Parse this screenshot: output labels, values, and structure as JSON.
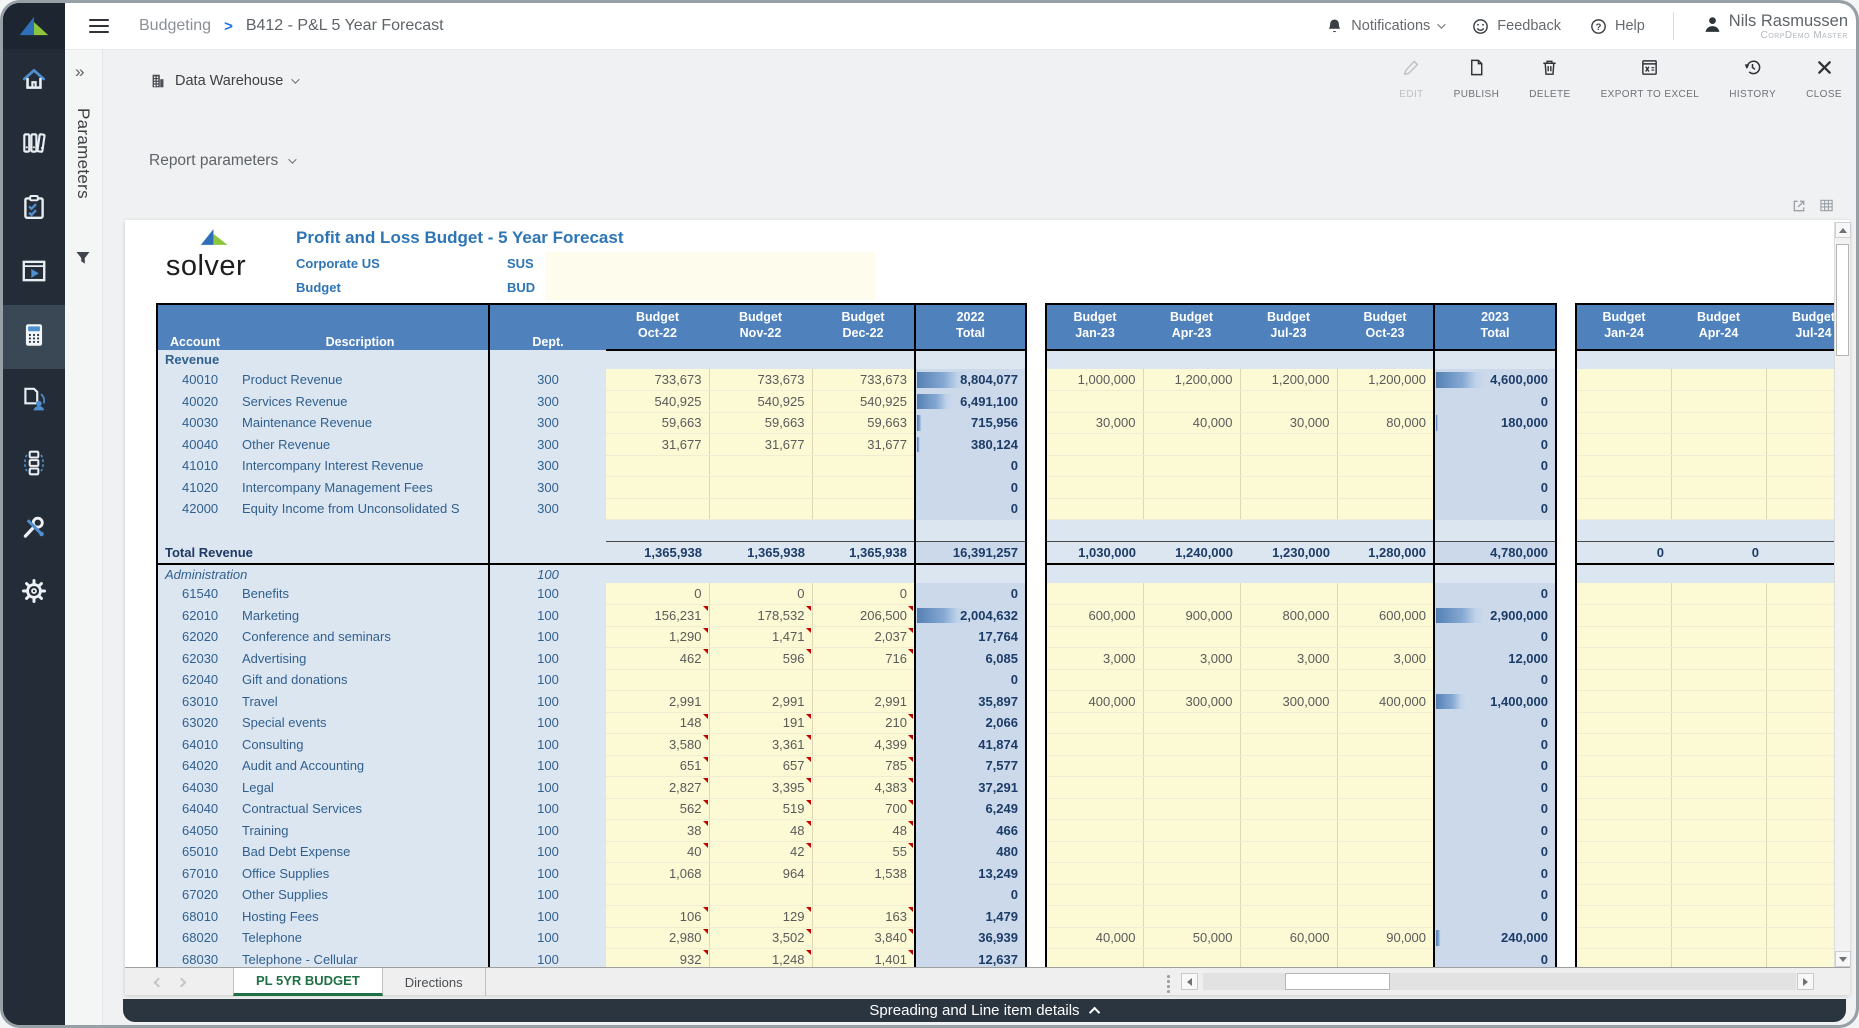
{
  "colors": {
    "header_blue": "#4F81BD",
    "band_blue": "#DCE6F1",
    "total_band_blue": "#CCD9EB",
    "input_cell_yellow": "#FCF9D5",
    "brand_blue": "#2E75B6",
    "active_tab_green": "#1E7145",
    "sidebar_bg": "#232C37",
    "bottom_bar_bg": "#2B3540",
    "comment_red": "#C00000"
  },
  "topbar": {
    "breadcrumb": {
      "section": "Budgeting",
      "separator": ">",
      "page": "B412 - P&L 5 Year Forecast"
    },
    "notifications_label": "Notifications",
    "feedback_label": "Feedback",
    "help_label": "Help",
    "user": {
      "name": "Nils Rasmussen",
      "role": "CorpDemo Master"
    }
  },
  "sidebar": {
    "logo_icon": "solver-logo-icon",
    "items": [
      {
        "icon": "home-icon",
        "active": false
      },
      {
        "icon": "library-icon",
        "active": false
      },
      {
        "icon": "tasks-icon",
        "active": false
      },
      {
        "icon": "report-player-icon",
        "active": false
      },
      {
        "icon": "budgeting-calculator-icon",
        "active": true
      },
      {
        "icon": "assignments-icon",
        "active": false
      },
      {
        "icon": "process-icon",
        "active": false
      },
      {
        "icon": "admin-tools-icon",
        "active": false
      },
      {
        "icon": "settings-gear-icon",
        "active": false
      }
    ]
  },
  "parameters_panel": {
    "label": "Parameters",
    "expand_glyph": "»",
    "filter_icon": "funnel-icon"
  },
  "toolbar": {
    "source": {
      "icon": "building-icon",
      "label": "Data Warehouse"
    },
    "actions": [
      {
        "id": "edit",
        "label": "EDIT",
        "icon": "pencil-icon",
        "disabled": true
      },
      {
        "id": "publish",
        "label": "PUBLISH",
        "icon": "publish-document-icon",
        "disabled": false
      },
      {
        "id": "delete",
        "label": "DELETE",
        "icon": "trash-icon",
        "disabled": false
      },
      {
        "id": "export-to-excel",
        "label": "EXPORT TO EXCEL",
        "icon": "excel-export-icon",
        "disabled": false
      },
      {
        "id": "history",
        "label": "HISTORY",
        "icon": "history-icon",
        "disabled": false
      },
      {
        "id": "close",
        "label": "CLOSE",
        "icon": "close-x-icon",
        "disabled": false
      }
    ]
  },
  "report_parameters": {
    "label": "Report parameters"
  },
  "report": {
    "logo_text": "solver",
    "title": "Profit and Loss Budget - 5 Year Forecast",
    "entity_name": "Corporate US",
    "entity_code": "SUS",
    "scenario_name": "Budget",
    "scenario_code": "BUD",
    "frozen_headers": [
      "Account",
      "Description",
      "Dept."
    ],
    "panels": [
      {
        "year": "2022",
        "month_prefix": "Budget",
        "months": [
          "Oct-22",
          "Nov-22",
          "Dec-22"
        ],
        "total_label": "Total"
      },
      {
        "year": "2023",
        "month_prefix": "Budget",
        "months": [
          "Jan-23",
          "Apr-23",
          "Jul-23",
          "Oct-23"
        ],
        "total_label": "Total"
      },
      {
        "year": "2024",
        "month_prefix": "Budget",
        "months": [
          "Jan-24",
          "Apr-24",
          "Jul-24"
        ],
        "total_label": null
      }
    ],
    "rows": [
      {
        "t": "sec",
        "label": "Revenue",
        "dept": ""
      },
      {
        "t": "acct",
        "acc": "40010",
        "desc": "Product Revenue",
        "dept": "300",
        "m1": [
          "733,673",
          "733,673",
          "733,673"
        ],
        "t1": "8,804,077",
        "b1": 0.45,
        "m2": [
          "1,000,000",
          "1,200,000",
          "1,200,000",
          "1,200,000"
        ],
        "t2": "4,600,000",
        "b2": 0.4
      },
      {
        "t": "acct",
        "acc": "40020",
        "desc": "Services Revenue",
        "dept": "300",
        "m1": [
          "540,925",
          "540,925",
          "540,925"
        ],
        "t1": "6,491,100",
        "b1": 0.33,
        "m2": [
          "",
          "",
          "",
          ""
        ],
        "t2": "0"
      },
      {
        "t": "acct",
        "acc": "40030",
        "desc": "Maintenance Revenue",
        "dept": "300",
        "m1": [
          "59,663",
          "59,663",
          "59,663"
        ],
        "t1": "715,956",
        "b1": 0.05,
        "m2": [
          "30,000",
          "40,000",
          "30,000",
          "80,000"
        ],
        "t2": "180,000",
        "b2": 0.02
      },
      {
        "t": "acct",
        "acc": "40040",
        "desc": "Other Revenue",
        "dept": "300",
        "m1": [
          "31,677",
          "31,677",
          "31,677"
        ],
        "t1": "380,124",
        "b1": 0.03,
        "m2": [
          "",
          "",
          "",
          ""
        ],
        "t2": "0"
      },
      {
        "t": "acct",
        "acc": "41010",
        "desc": "Intercompany Interest Revenue",
        "dept": "300",
        "m1": [
          "",
          "",
          ""
        ],
        "t1": "0",
        "m2": [
          "",
          "",
          "",
          ""
        ],
        "t2": "0"
      },
      {
        "t": "acct",
        "acc": "41020",
        "desc": "Intercompany Management Fees",
        "dept": "300",
        "m1": [
          "",
          "",
          ""
        ],
        "t1": "0",
        "m2": [
          "",
          "",
          "",
          ""
        ],
        "t2": "0"
      },
      {
        "t": "acct",
        "acc": "42000",
        "desc": "Equity Income from Unconsolidated S",
        "dept": "300",
        "m1": [
          "",
          "",
          ""
        ],
        "t1": "0",
        "m2": [
          "",
          "",
          "",
          ""
        ],
        "t2": "0"
      },
      {
        "t": "spacer"
      },
      {
        "t": "total",
        "label": "Total Revenue",
        "m1": [
          "1,365,938",
          "1,365,938",
          "1,365,938"
        ],
        "t1": "16,391,257",
        "m2": [
          "1,030,000",
          "1,240,000",
          "1,230,000",
          "1,280,000"
        ],
        "t2": "4,780,000",
        "m3": [
          "0",
          "0",
          ""
        ]
      },
      {
        "t": "seci",
        "label": "Administration",
        "dept": "100"
      },
      {
        "t": "acct",
        "acc": "61540",
        "desc": "Benefits",
        "dept": "100",
        "m1": [
          "0",
          "0",
          "0"
        ],
        "t1": "0",
        "m2": [
          "",
          "",
          "",
          ""
        ],
        "t2": "0"
      },
      {
        "t": "acct",
        "acc": "62010",
        "desc": "Marketing",
        "dept": "100",
        "m1": [
          "156,231",
          "178,532",
          "206,500"
        ],
        "t1": "2,004,632",
        "b1": 0.45,
        "cm1": true,
        "m2": [
          "600,000",
          "900,000",
          "800,000",
          "600,000"
        ],
        "t2": "2,900,000",
        "b2": 0.4
      },
      {
        "t": "acct",
        "acc": "62020",
        "desc": "Conference and seminars",
        "dept": "100",
        "m1": [
          "1,290",
          "1,471",
          "2,037"
        ],
        "t1": "17,764",
        "cm1": true,
        "m2": [
          "",
          "",
          "",
          ""
        ],
        "t2": "0"
      },
      {
        "t": "acct",
        "acc": "62030",
        "desc": "Advertising",
        "dept": "100",
        "m1": [
          "462",
          "596",
          "716"
        ],
        "t1": "6,085",
        "cm1": true,
        "m2": [
          "3,000",
          "3,000",
          "3,000",
          "3,000"
        ],
        "t2": "12,000"
      },
      {
        "t": "acct",
        "acc": "62040",
        "desc": "Gift and donations",
        "dept": "100",
        "m1": [
          "",
          "",
          ""
        ],
        "t1": "0",
        "m2": [
          "",
          "",
          "",
          ""
        ],
        "t2": "0"
      },
      {
        "t": "acct",
        "acc": "63010",
        "desc": "Travel",
        "dept": "100",
        "m1": [
          "2,991",
          "2,991",
          "2,991"
        ],
        "t1": "35,897",
        "m2": [
          "400,000",
          "300,000",
          "300,000",
          "400,000"
        ],
        "t2": "1,400,000",
        "b2": 0.25
      },
      {
        "t": "acct",
        "acc": "63020",
        "desc": "Special events",
        "dept": "100",
        "m1": [
          "148",
          "191",
          "210"
        ],
        "t1": "2,066",
        "cm1": true,
        "m2": [
          "",
          "",
          "",
          ""
        ],
        "t2": "0"
      },
      {
        "t": "acct",
        "acc": "64010",
        "desc": "Consulting",
        "dept": "100",
        "m1": [
          "3,580",
          "3,361",
          "4,399"
        ],
        "t1": "41,874",
        "cm1": true,
        "m2": [
          "",
          "",
          "",
          ""
        ],
        "t2": "0"
      },
      {
        "t": "acct",
        "acc": "64020",
        "desc": "Audit and Accounting",
        "dept": "100",
        "m1": [
          "651",
          "657",
          "785"
        ],
        "t1": "7,577",
        "cm1": true,
        "m2": [
          "",
          "",
          "",
          ""
        ],
        "t2": "0"
      },
      {
        "t": "acct",
        "acc": "64030",
        "desc": "Legal",
        "dept": "100",
        "m1": [
          "2,827",
          "3,395",
          "4,383"
        ],
        "t1": "37,291",
        "cm1": true,
        "m2": [
          "",
          "",
          "",
          ""
        ],
        "t2": "0"
      },
      {
        "t": "acct",
        "acc": "64040",
        "desc": "Contractual Services",
        "dept": "100",
        "m1": [
          "562",
          "519",
          "700"
        ],
        "t1": "6,249",
        "cm1": true,
        "m2": [
          "",
          "",
          "",
          ""
        ],
        "t2": "0"
      },
      {
        "t": "acct",
        "acc": "64050",
        "desc": "Training",
        "dept": "100",
        "m1": [
          "38",
          "48",
          "48"
        ],
        "t1": "466",
        "cm1": true,
        "m2": [
          "",
          "",
          "",
          ""
        ],
        "t2": "0"
      },
      {
        "t": "acct",
        "acc": "65010",
        "desc": "Bad Debt Expense",
        "dept": "100",
        "m1": [
          "40",
          "42",
          "55"
        ],
        "t1": "480",
        "cm1": true,
        "m2": [
          "",
          "",
          "",
          ""
        ],
        "t2": "0"
      },
      {
        "t": "acct",
        "acc": "67010",
        "desc": "Office Supplies",
        "dept": "100",
        "m1": [
          "1,068",
          "964",
          "1,538"
        ],
        "t1": "13,249",
        "m2": [
          "",
          "",
          "",
          ""
        ],
        "t2": "0"
      },
      {
        "t": "acct",
        "acc": "67020",
        "desc": "Other Supplies",
        "dept": "100",
        "m1": [
          "",
          "",
          ""
        ],
        "t1": "0",
        "m2": [
          "",
          "",
          "",
          ""
        ],
        "t2": "0"
      },
      {
        "t": "acct",
        "acc": "68010",
        "desc": "Hosting Fees",
        "dept": "100",
        "m1": [
          "106",
          "129",
          "163"
        ],
        "t1": "1,479",
        "cm1": true,
        "m2": [
          "",
          "",
          "",
          ""
        ],
        "t2": "0"
      },
      {
        "t": "acct",
        "acc": "68020",
        "desc": "Telephone",
        "dept": "100",
        "m1": [
          "2,980",
          "3,502",
          "3,840"
        ],
        "t1": "36,939",
        "cm1": true,
        "m2": [
          "40,000",
          "50,000",
          "60,000",
          "90,000"
        ],
        "t2": "240,000",
        "b2": 0.04
      },
      {
        "t": "acct",
        "acc": "68030",
        "desc": "Telephone - Cellular",
        "dept": "100",
        "m1": [
          "932",
          "1,248",
          "1,401"
        ],
        "t1": "12,637",
        "cm1": true,
        "m2": [
          "",
          "",
          "",
          ""
        ],
        "t2": "0"
      }
    ]
  },
  "sheet_tabs": {
    "tabs": [
      {
        "label": "PL 5YR BUDGET",
        "active": true
      },
      {
        "label": "Directions",
        "active": false
      }
    ]
  },
  "bottom_bar": {
    "label": "Spreading and Line item details"
  }
}
